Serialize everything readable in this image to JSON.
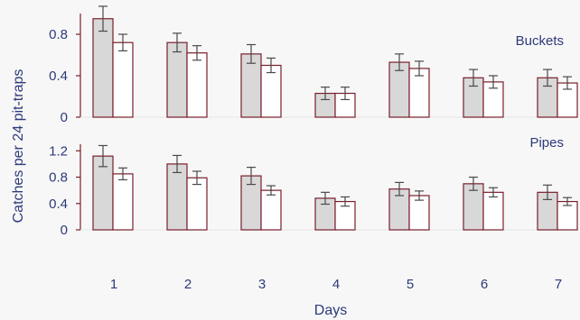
{
  "chart_data": {
    "type": "bar",
    "xlabel": "Days",
    "ylabel": "Catches per 24 pit-traps",
    "categories": [
      "1",
      "2",
      "3",
      "4",
      "5",
      "6",
      "7"
    ],
    "colors": {
      "dark_bar": "#d8d8d8",
      "light_bar": "#ffffff",
      "stroke": "#7a1f2b",
      "text": "#2d3a7a"
    },
    "panels": [
      {
        "label": "Buckets",
        "ylim": [
          0,
          1.0
        ],
        "yticks": [
          "0",
          "0.4",
          "0.8"
        ],
        "series": [
          {
            "values": [
              0.95,
              0.72,
              0.61,
              0.23,
              0.53,
              0.38,
              0.38
            ],
            "errors": [
              0.12,
              0.09,
              0.09,
              0.06,
              0.08,
              0.08,
              0.08
            ]
          },
          {
            "values": [
              0.72,
              0.62,
              0.5,
              0.23,
              0.47,
              0.34,
              0.33
            ],
            "errors": [
              0.08,
              0.07,
              0.07,
              0.06,
              0.07,
              0.06,
              0.06
            ]
          }
        ]
      },
      {
        "label": "Pipes",
        "ylim": [
          0,
          1.3
        ],
        "yticks": [
          "0",
          "0.4",
          "0.8",
          "1.2"
        ],
        "series": [
          {
            "values": [
              1.12,
              1.0,
              0.82,
              0.48,
              0.62,
              0.7,
              0.57
            ],
            "errors": [
              0.16,
              0.13,
              0.13,
              0.09,
              0.1,
              0.1,
              0.11
            ]
          },
          {
            "values": [
              0.85,
              0.79,
              0.6,
              0.43,
              0.52,
              0.57,
              0.43
            ],
            "errors": [
              0.09,
              0.1,
              0.07,
              0.07,
              0.07,
              0.07,
              0.06
            ]
          }
        ]
      }
    ]
  }
}
